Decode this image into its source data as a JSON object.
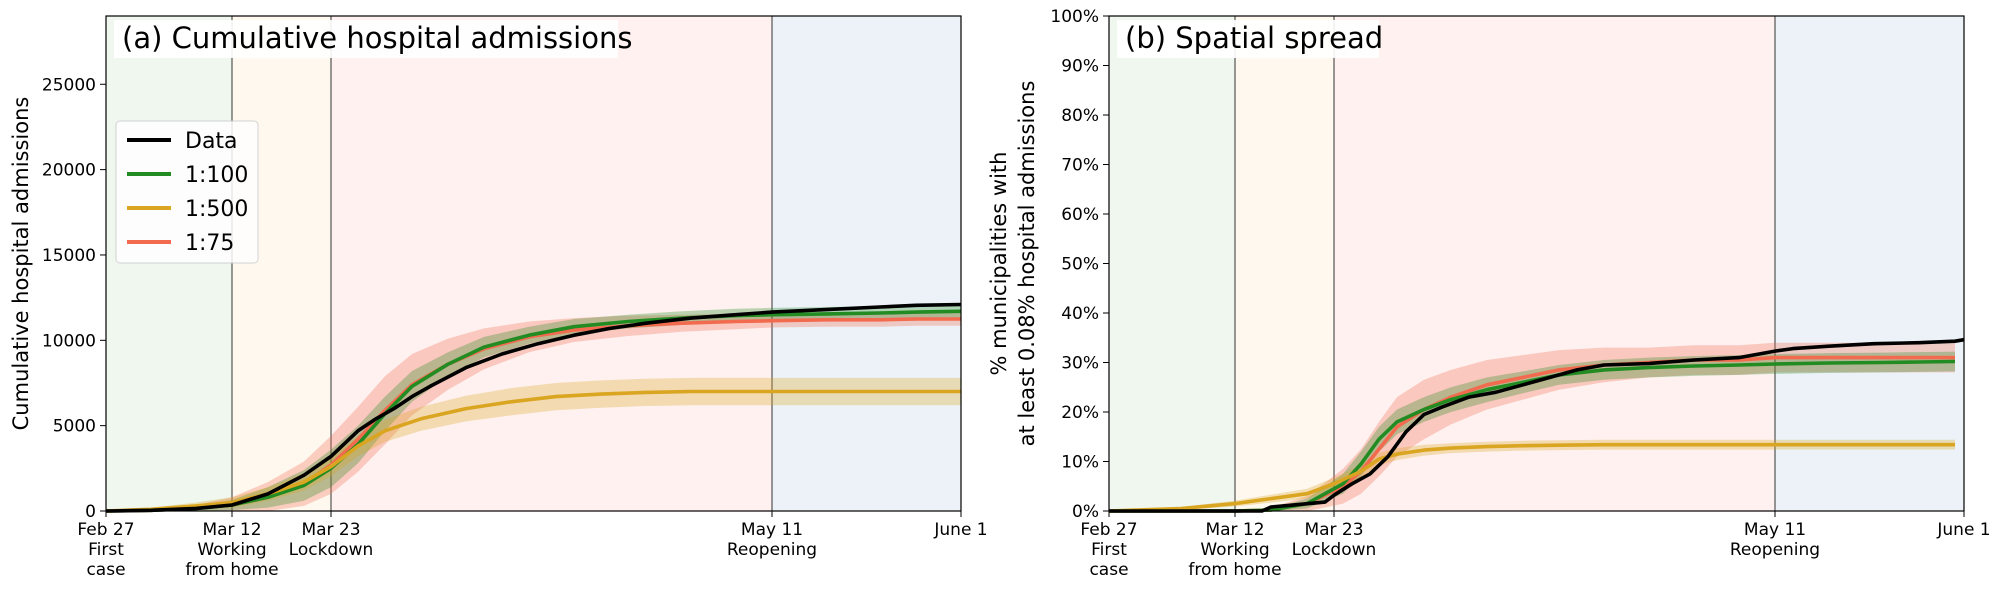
{
  "figure": {
    "colors": {
      "data": "#000000",
      "s100": "#228b22",
      "s500": "#daa520",
      "s75": "#f26b4f",
      "phase1": "#e9f4ea",
      "phase2": "#fdf6ea",
      "phase3": "#fdecea",
      "phase4": "#e6edf4"
    },
    "legend": {
      "items": [
        {
          "label": "Data",
          "key": "data"
        },
        {
          "label": "1:100",
          "key": "s100"
        },
        {
          "label": "1:500",
          "key": "s500"
        },
        {
          "label": "1:75",
          "key": "s75"
        }
      ]
    }
  },
  "chart_data": [
    {
      "type": "line",
      "title": "(a) Cumulative hospital admissions",
      "ylabel": "Cumulative hospital admissions",
      "xlim": [
        0,
        95
      ],
      "ylim": [
        0,
        29000
      ],
      "yticks": [
        0,
        5000,
        10000,
        15000,
        20000,
        25000
      ],
      "ytick_labels": [
        "0",
        "5000",
        "10000",
        "15000",
        "20000",
        "25000"
      ],
      "xticks": [
        {
          "day": 0,
          "lines": [
            "Feb 27",
            "First",
            "case"
          ]
        },
        {
          "day": 14,
          "lines": [
            "Mar 12",
            "Working",
            "from home"
          ]
        },
        {
          "day": 25,
          "lines": [
            "Mar 23",
            "Lockdown"
          ]
        },
        {
          "day": 74,
          "lines": [
            "May 11",
            "Reopening"
          ]
        },
        {
          "day": 95,
          "lines": [
            "June 1"
          ]
        }
      ],
      "series": [
        {
          "name": "1:75",
          "key": "s75",
          "x": [
            0,
            5,
            10,
            14,
            18,
            22,
            25,
            28,
            31,
            34,
            38,
            42,
            47,
            52,
            58,
            64,
            70,
            74,
            80,
            86,
            90,
            95
          ],
          "y": [
            0,
            40,
            150,
            350,
            800,
            1600,
            2700,
            4200,
            5900,
            7400,
            8600,
            9500,
            10200,
            10600,
            10850,
            11000,
            11100,
            11150,
            11200,
            11200,
            11250,
            11250
          ],
          "band": [
            0,
            50,
            200,
            450,
            900,
            1300,
            1700,
            1900,
            2000,
            1800,
            1500,
            1200,
            900,
            700,
            600,
            500,
            450,
            400,
            400,
            400,
            400,
            400
          ]
        },
        {
          "name": "1:100",
          "key": "s100",
          "x": [
            0,
            5,
            10,
            14,
            18,
            22,
            25,
            28,
            31,
            34,
            38,
            42,
            47,
            52,
            58,
            64,
            70,
            74,
            80,
            86,
            90,
            95
          ],
          "y": [
            0,
            40,
            150,
            350,
            800,
            1500,
            2500,
            3900,
            5700,
            7300,
            8600,
            9600,
            10300,
            10800,
            11100,
            11300,
            11450,
            11500,
            11550,
            11600,
            11650,
            11700
          ],
          "band": [
            0,
            40,
            150,
            300,
            600,
            900,
            1100,
            1100,
            1000,
            900,
            700,
            600,
            500,
            450,
            400,
            400,
            400,
            400,
            400,
            400,
            400,
            400
          ]
        },
        {
          "name": "1:500",
          "key": "s500",
          "x": [
            0,
            5,
            10,
            14,
            18,
            22,
            25,
            28,
            31,
            35,
            40,
            45,
            50,
            55,
            60,
            65,
            70,
            74,
            80,
            86,
            90,
            95
          ],
          "y": [
            0,
            100,
            300,
            500,
            1000,
            1700,
            2600,
            3800,
            4700,
            5400,
            6000,
            6400,
            6700,
            6850,
            6950,
            7000,
            7000,
            7000,
            7000,
            7000,
            7000,
            7000
          ],
          "band": [
            0,
            100,
            200,
            300,
            400,
            500,
            550,
            600,
            650,
            700,
            750,
            800,
            800,
            800,
            800,
            800,
            800,
            800,
            800,
            800,
            800,
            800
          ]
        },
        {
          "name": "Data",
          "key": "data",
          "x": [
            0,
            5,
            10,
            14,
            18,
            22,
            25,
            28,
            30,
            32,
            34,
            36,
            40,
            44,
            48,
            52,
            56,
            60,
            65,
            70,
            74,
            80,
            86,
            90,
            95
          ],
          "y": [
            0,
            40,
            150,
            350,
            1000,
            2100,
            3200,
            4700,
            5400,
            6000,
            6700,
            7300,
            8400,
            9200,
            9800,
            10300,
            10700,
            11000,
            11300,
            11500,
            11650,
            11800,
            11950,
            12050,
            12100
          ],
          "band": [
            0,
            0,
            0,
            0,
            0,
            0,
            0,
            0,
            0,
            0,
            0,
            0,
            0,
            0,
            0,
            0,
            0,
            0,
            0,
            0,
            0,
            0,
            0,
            0,
            0
          ]
        }
      ]
    },
    {
      "type": "line",
      "title": "(b) Spatial spread",
      "ylabel_lines": [
        "% municipalities with",
        "at least 0.08% hospital admissions"
      ],
      "xlim": [
        0,
        95
      ],
      "ylim": [
        0,
        100
      ],
      "yticks": [
        0,
        10,
        20,
        30,
        40,
        50,
        60,
        70,
        80,
        90,
        100
      ],
      "ytick_labels": [
        "0%",
        "10%",
        "20%",
        "30%",
        "40%",
        "50%",
        "60%",
        "70%",
        "80%",
        "90%",
        "100%"
      ],
      "xticks": [
        {
          "day": 0,
          "lines": [
            "Feb 27",
            "First",
            "case"
          ]
        },
        {
          "day": 14,
          "lines": [
            "Mar 12",
            "Working",
            "from home"
          ]
        },
        {
          "day": 25,
          "lines": [
            "Mar 23",
            "Lockdown"
          ]
        },
        {
          "day": 74,
          "lines": [
            "May 11",
            "Reopening"
          ]
        },
        {
          "day": 95,
          "lines": [
            "June 1"
          ]
        }
      ],
      "series": [
        {
          "name": "1:75",
          "key": "s75",
          "x": [
            0,
            14,
            18,
            22,
            24,
            26,
            28,
            30,
            32,
            35,
            38,
            42,
            46,
            50,
            55,
            60,
            65,
            70,
            74,
            80,
            86,
            90,
            94
          ],
          "y": [
            0,
            0,
            0.2,
            1.5,
            3.2,
            5,
            8,
            12.5,
            17,
            20.5,
            23,
            25.5,
            27,
            28.5,
            29.5,
            30,
            30.5,
            30.5,
            31,
            31,
            31,
            31,
            31
          ],
          "band": [
            0,
            0,
            0.5,
            1.5,
            2.5,
            3.5,
            4.5,
            5.5,
            6,
            6,
            5.5,
            5,
            4.5,
            4,
            3.5,
            3,
            3,
            3,
            3,
            3,
            3,
            3,
            3
          ]
        },
        {
          "name": "1:100",
          "key": "s100",
          "x": [
            0,
            14,
            18,
            22,
            24,
            26,
            28,
            30,
            32,
            35,
            38,
            42,
            46,
            50,
            55,
            60,
            65,
            70,
            74,
            80,
            86,
            90,
            94
          ],
          "y": [
            0,
            0,
            0.2,
            1.5,
            3.5,
            5.5,
            9.5,
            14.5,
            18,
            20.5,
            22.5,
            24.5,
            26,
            27.5,
            28.5,
            29,
            29.3,
            29.5,
            29.7,
            29.9,
            30,
            30.1,
            30.2
          ],
          "band": [
            0,
            0,
            0.3,
            1,
            1.5,
            2,
            2.5,
            2.5,
            2.5,
            2.5,
            2.5,
            2.5,
            2.2,
            2,
            2,
            2,
            2,
            2,
            2,
            2,
            2,
            2,
            2
          ]
        },
        {
          "name": "1:500",
          "key": "s500",
          "x": [
            0,
            8,
            14,
            18,
            22,
            25,
            28,
            30,
            32,
            35,
            38,
            42,
            46,
            50,
            55,
            60,
            70,
            80,
            90,
            94
          ],
          "y": [
            0,
            0.5,
            1.5,
            2.5,
            3.5,
            5.5,
            8,
            10.5,
            11.5,
            12.3,
            12.7,
            13,
            13.2,
            13.3,
            13.4,
            13.4,
            13.4,
            13.4,
            13.4,
            13.4
          ],
          "band": [
            0,
            0.3,
            0.6,
            0.8,
            1,
            1.2,
            1.3,
            1.3,
            1.2,
            1.1,
            1,
            1,
            1,
            1,
            1,
            1,
            1,
            1,
            1,
            1
          ]
        },
        {
          "name": "Data",
          "key": "data",
          "x": [
            0,
            17,
            18,
            21,
            24,
            25,
            27,
            29,
            31,
            33,
            35,
            37,
            40,
            43,
            46,
            49,
            52,
            55,
            60,
            65,
            70,
            74,
            76,
            80,
            85,
            90,
            94,
            95
          ],
          "y": [
            0,
            0,
            0.8,
            1.3,
            1.8,
            3.2,
            5.5,
            7.5,
            11,
            16,
            19.5,
            21,
            23,
            24,
            25.5,
            27,
            28.5,
            29.5,
            29.8,
            30.5,
            31,
            32.3,
            32.8,
            33.3,
            33.8,
            34,
            34.3,
            34.6
          ],
          "band": [
            0,
            0,
            0,
            0,
            0,
            0,
            0,
            0,
            0,
            0,
            0,
            0,
            0,
            0,
            0,
            0,
            0,
            0,
            0,
            0,
            0,
            0,
            0,
            0,
            0,
            0,
            0,
            0
          ]
        }
      ]
    }
  ]
}
